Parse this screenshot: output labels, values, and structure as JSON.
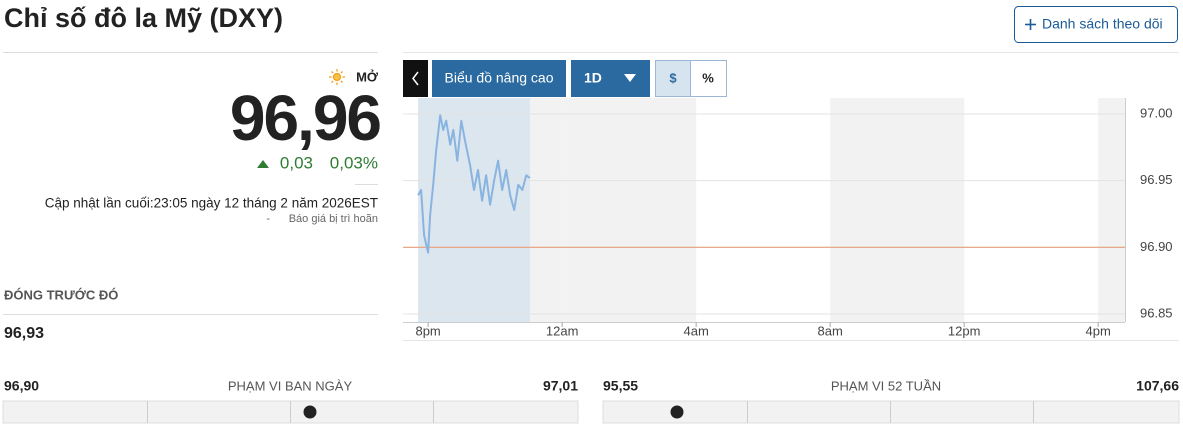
{
  "header": {
    "title": "Chỉ số đô la Mỹ (DXY)",
    "watchlist_button": "Danh sách theo dõi"
  },
  "quote": {
    "status": "MỞ",
    "price": "96,96",
    "change": "0,03",
    "change_percent": "0,03%",
    "updated": "Cập nhật lần cuối:23:05 ngày 12 tháng 2 năm 2026EST",
    "delay_note": "Báo giá bị trì hoãn"
  },
  "previous_close": {
    "label": "ĐÓNG TRƯỚC ĐÓ",
    "value": "96,93"
  },
  "day_range": {
    "low": "96,90",
    "label": "PHẠM VI BAN NGÀY",
    "high": "97,01"
  },
  "week52_range": {
    "low": "95,55",
    "label": "PHẠM VI 52 TUẦN",
    "high": "107,66"
  },
  "chart_toolbar": {
    "advanced": "Biểu đồ nâng cao",
    "period": "1D",
    "dollar": "$",
    "percent": "%"
  },
  "chart_data": {
    "type": "line",
    "color": "#8ab4e0",
    "x": [
      -0.3,
      -0.21,
      -0.12,
      0,
      0.06,
      0.15,
      0.24,
      0.36,
      0.45,
      0.54,
      0.66,
      0.75,
      0.87,
      0.99,
      1.1,
      1.25,
      1.37,
      1.49,
      1.61,
      1.73,
      1.85,
      1.97,
      2.09,
      2.21,
      2.33,
      2.45,
      2.57,
      2.69,
      2.81,
      2.93,
      3.04
    ],
    "values": [
      96.939,
      96.943,
      96.909,
      96.896,
      96.924,
      96.947,
      96.973,
      96.999,
      96.988,
      96.995,
      96.977,
      96.988,
      96.965,
      96.995,
      96.98,
      96.962,
      96.943,
      96.958,
      96.935,
      96.954,
      96.932,
      96.95,
      96.965,
      96.943,
      96.958,
      96.939,
      96.928,
      96.947,
      96.943,
      96.954,
      96.952
    ],
    "xlim": [
      -0.75,
      20.8
    ],
    "xticks": [
      {
        "value": 0,
        "label": "8pm"
      },
      {
        "value": 4,
        "label": "12am"
      },
      {
        "value": 8,
        "label": "4am"
      },
      {
        "value": 12,
        "label": "8am"
      },
      {
        "value": 16,
        "label": "12pm"
      },
      {
        "value": 20,
        "label": "4pm"
      }
    ],
    "ylim": [
      96.844,
      97.012
    ],
    "yticks": [
      {
        "value": 96.85,
        "label": "96.85"
      },
      {
        "value": 96.9,
        "label": "96.90"
      },
      {
        "value": 96.95,
        "label": "96.95"
      },
      {
        "value": 97,
        "label": "97.00"
      }
    ],
    "reference_line": 96.9,
    "reference_color": "#e8a07a",
    "grid": true
  }
}
